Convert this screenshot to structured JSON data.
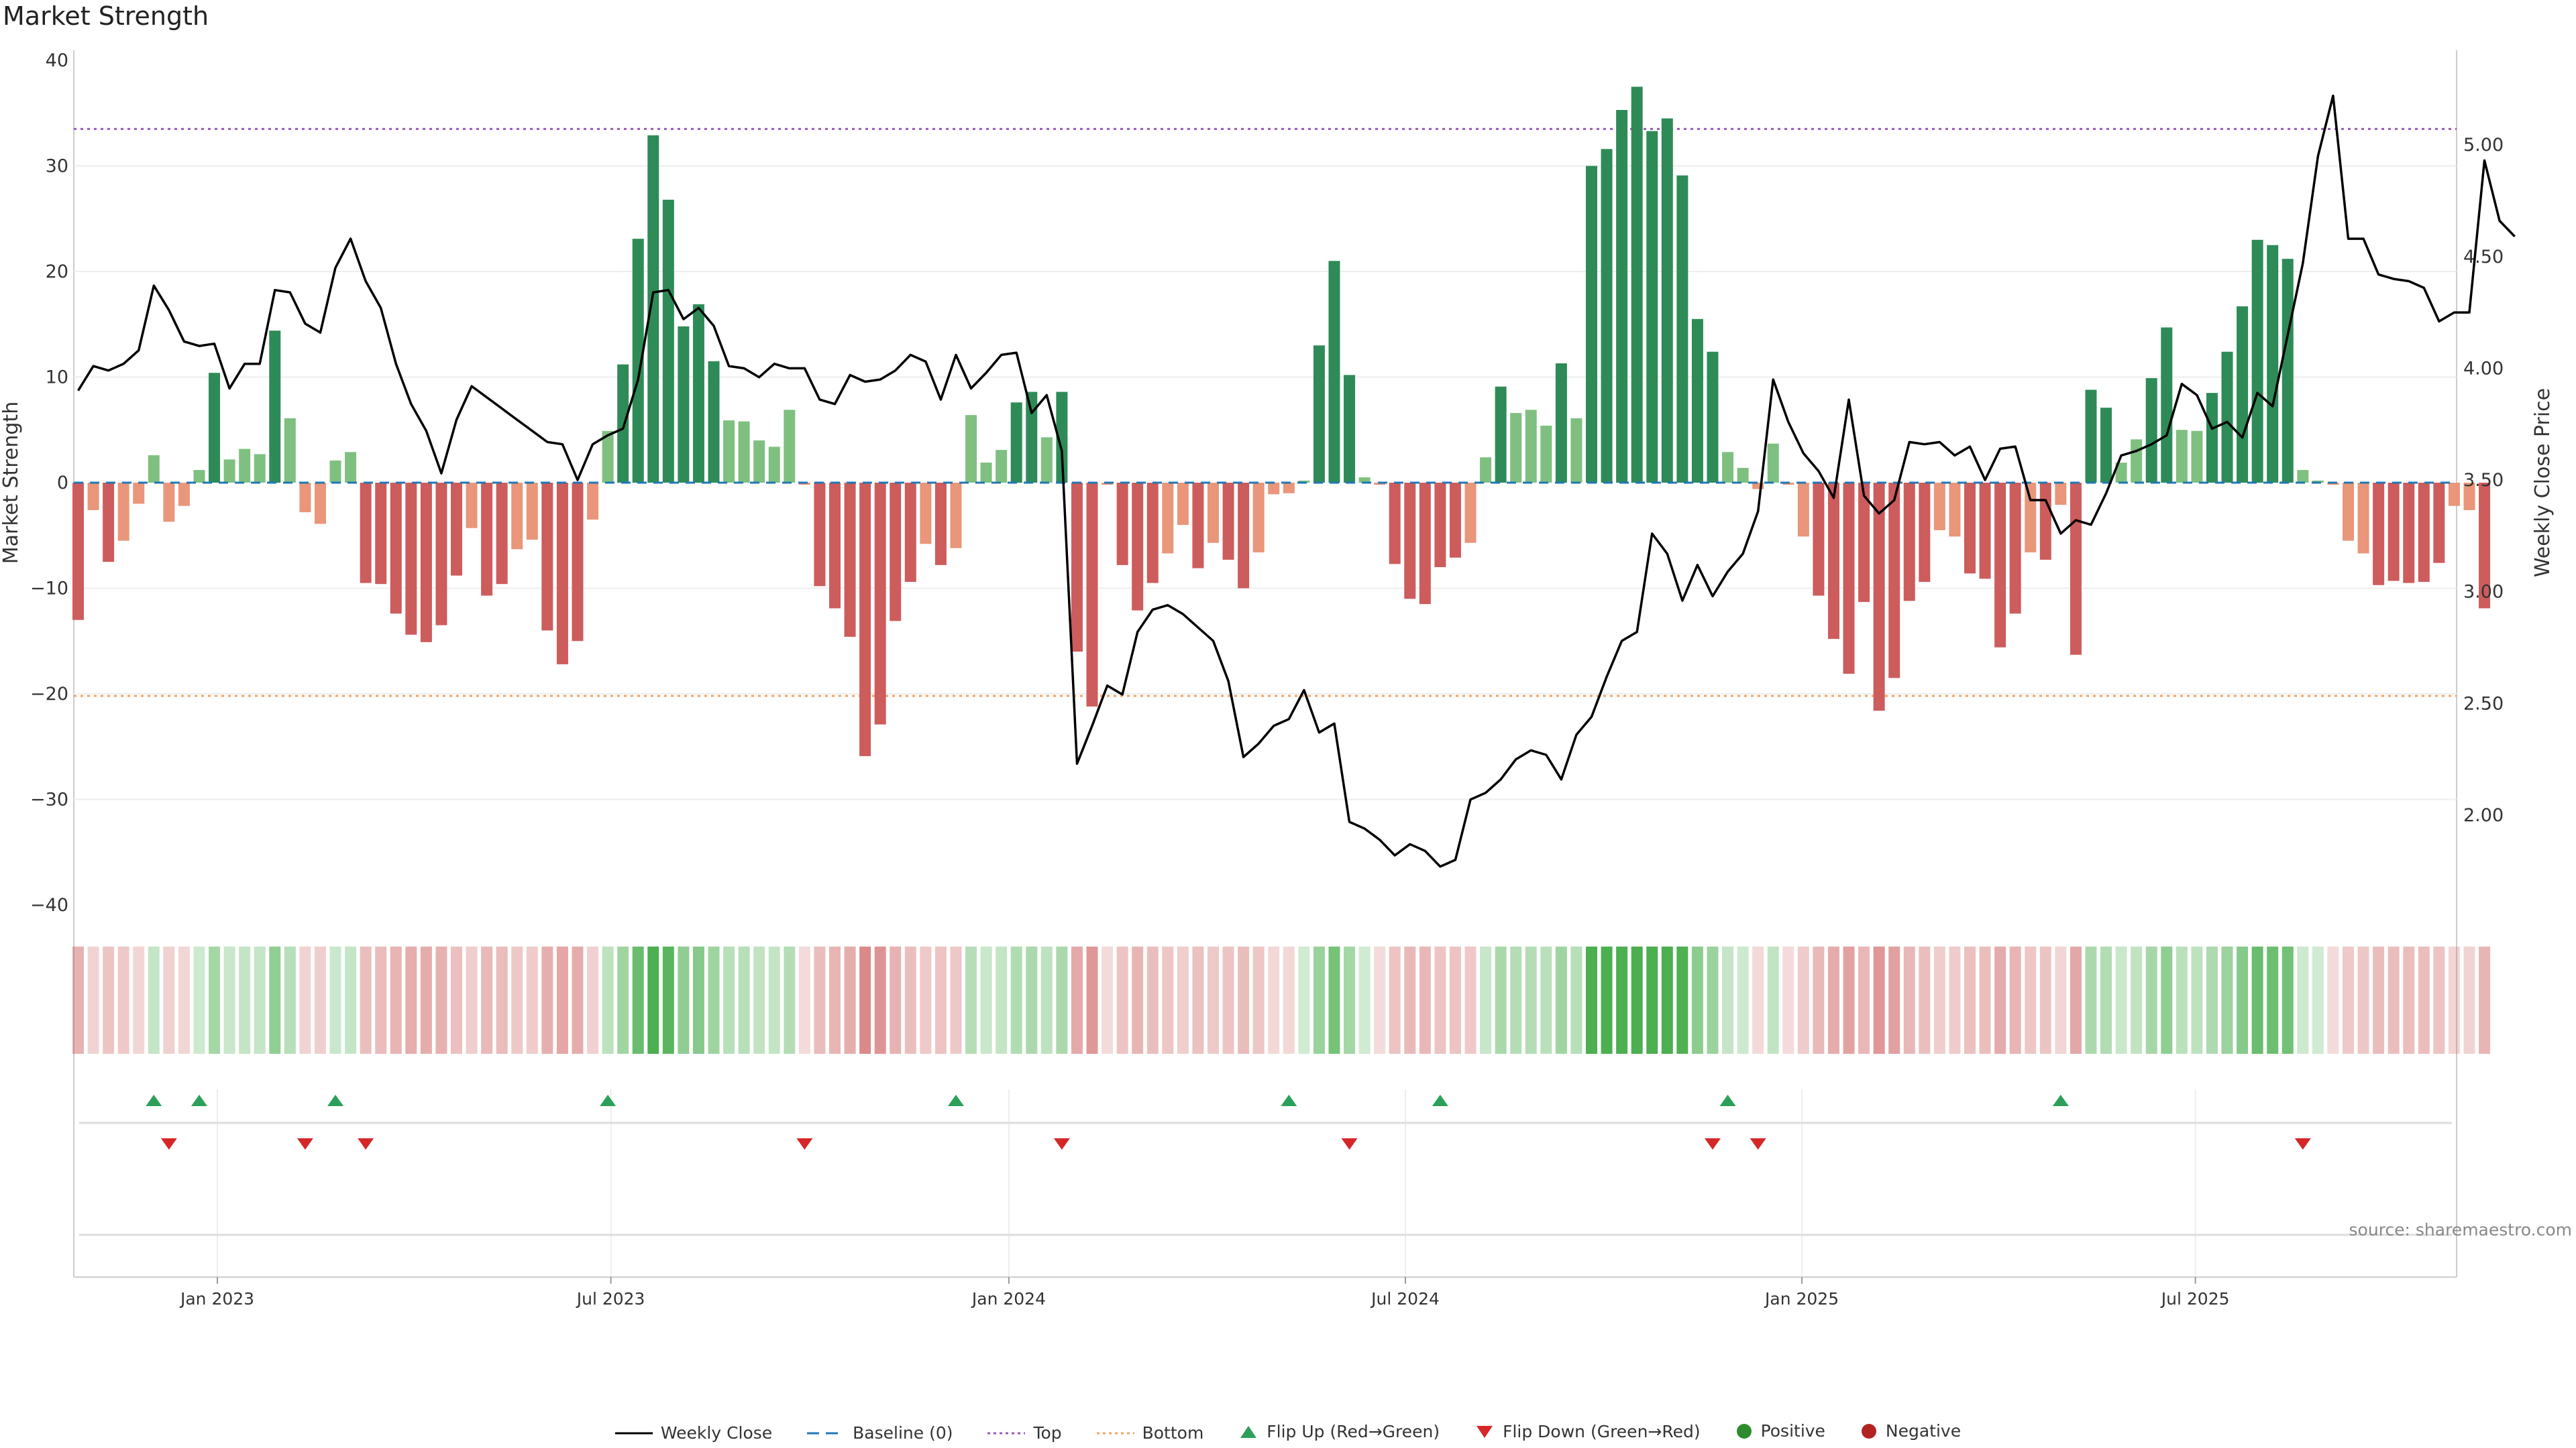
{
  "title": "Market Strength",
  "source": "source: sharemaestro.com",
  "colors": {
    "pos_strong": "#2e8b57",
    "pos_light": "#7fc080",
    "neg_strong": "#cd5c5c",
    "neg_light": "#e9967a",
    "close": "#000000",
    "top_line": "#9b59b6",
    "bottom_line": "#f4a460",
    "baseline": "#1f77b4",
    "flip_up": "#2ca05a",
    "flip_down": "#d62728"
  },
  "chart_data": {
    "type": "bar+line",
    "title": "Market Strength",
    "ylabel": "Market Strength",
    "y2label": "Weekly Close Price",
    "ylim": [
      -40,
      40
    ],
    "y2lim": [
      1.5,
      5.4
    ],
    "yticks": [
      40,
      30,
      20,
      10,
      0,
      -10,
      -20,
      -30,
      -40
    ],
    "yticklabels": [
      "40",
      "30",
      "20",
      "10",
      "0",
      "−10",
      "−20",
      "−30",
      "−40"
    ],
    "y2ticks": [
      2.0,
      2.5,
      3.0,
      3.5,
      4.0,
      4.5,
      5.0
    ],
    "y2ticklabels": [
      "2.00",
      "2.50",
      "3.00",
      "3.50",
      "4.00",
      "4.50",
      "5.00"
    ],
    "top_level": 33.5,
    "bottom_level": -20.2,
    "xticks": [
      {
        "label": "Jan 2023",
        "index": 9.2
      },
      {
        "label": "Jul 2023",
        "index": 35.2
      },
      {
        "label": "Jan 2024",
        "index": 61.5
      },
      {
        "label": "Jul 2024",
        "index": 87.7
      },
      {
        "label": "Jan 2025",
        "index": 113.9
      },
      {
        "label": "Jul 2025",
        "index": 139.9
      }
    ],
    "strength": [
      -13,
      -2.6,
      -7.5,
      -5.5,
      -2,
      2.6,
      -3.7,
      -2.2,
      1.2,
      10.4,
      2.2,
      3.2,
      2.7,
      14.4,
      6.1,
      -2.8,
      -3.9,
      2.1,
      2.9,
      -9.5,
      -9.6,
      -12.4,
      -14.4,
      -15.1,
      -13.5,
      -8.8,
      -4.3,
      -10.7,
      -9.6,
      -6.3,
      -5.4,
      -14,
      -17.2,
      -15,
      -3.5,
      4.9,
      11.2,
      23.1,
      32.9,
      26.8,
      14.8,
      16.9,
      11.5,
      5.9,
      5.8,
      4,
      3.4,
      6.9,
      -0.2,
      -9.8,
      -11.9,
      -14.6,
      -25.9,
      -22.9,
      -13.1,
      -9.4,
      -5.8,
      -7.8,
      -6.2,
      6.4,
      1.9,
      3.1,
      7.6,
      8.6,
      4.3,
      8.6,
      -16,
      -21.2,
      -0.2,
      -7.8,
      -12.1,
      -9.5,
      -6.7,
      -4,
      -8.1,
      -5.7,
      -7.3,
      -10,
      -6.6,
      -1.1,
      -1,
      0.2,
      13,
      21,
      10.2,
      0.5,
      -0.2,
      -7.7,
      -11,
      -11.5,
      -8,
      -7.1,
      -5.7,
      2.4,
      9.1,
      6.6,
      6.9,
      5.4,
      11.3,
      6.1,
      30,
      31.6,
      35.3,
      37.5,
      33.3,
      34.5,
      29.1,
      15.5,
      12.4,
      2.9,
      1.4,
      -0.6,
      3.7,
      -0.2,
      -5.1,
      -10.7,
      -14.8,
      -18.1,
      -11.3,
      -21.6,
      -18.5,
      -11.2,
      -9.4,
      -4.5,
      -5.1,
      -8.6,
      -9.1,
      -15.6,
      -12.4,
      -6.6,
      -7.3,
      -2.1,
      -16.3,
      8.8,
      7.1,
      1.9,
      4.1,
      9.9,
      14.7,
      5,
      4.9,
      8.5,
      12.4,
      16.7,
      23,
      22.5,
      21.2,
      1.2,
      0.2,
      -0.2,
      -5.5,
      -6.7,
      -9.7,
      -9.3,
      -9.5,
      -9.4,
      -7.6,
      -2.2,
      -2.6,
      -11.9
    ],
    "close": [
      3.9,
      4.01,
      3.99,
      4.02,
      4.08,
      4.37,
      4.26,
      4.12,
      4.1,
      4.11,
      3.91,
      4.02,
      4.02,
      4.35,
      4.34,
      4.2,
      4.16,
      4.45,
      4.58,
      4.39,
      4.27,
      4.02,
      3.84,
      3.72,
      3.53,
      3.77,
      3.92,
      3.87,
      3.82,
      3.77,
      3.72,
      3.67,
      3.66,
      3.5,
      3.66,
      3.7,
      3.73,
      3.95,
      4.34,
      4.35,
      4.22,
      4.27,
      4.19,
      4.01,
      4,
      3.96,
      4.02,
      4,
      4,
      3.86,
      3.84,
      3.97,
      3.94,
      3.95,
      3.99,
      4.06,
      4.03,
      3.86,
      4.06,
      3.91,
      3.98,
      4.06,
      4.07,
      3.8,
      3.88,
      3.63,
      2.23,
      2.4,
      2.58,
      2.54,
      2.82,
      2.92,
      2.94,
      2.9,
      2.84,
      2.78,
      2.6,
      2.26,
      2.32,
      2.4,
      2.43,
      2.56,
      2.37,
      2.41,
      1.97,
      1.94,
      1.89,
      1.82,
      1.87,
      1.84,
      1.77,
      1.8,
      2.07,
      2.1,
      2.16,
      2.25,
      2.29,
      2.27,
      2.16,
      2.36,
      2.44,
      2.62,
      2.78,
      2.82,
      3.26,
      3.17,
      2.96,
      3.12,
      2.98,
      3.09,
      3.17,
      3.36,
      3.95,
      3.76,
      3.62,
      3.54,
      3.42,
      3.86,
      3.43,
      3.35,
      3.41,
      3.67,
      3.66,
      3.67,
      3.61,
      3.65,
      3.5,
      3.64,
      3.65,
      3.41,
      3.41,
      3.26,
      3.32,
      3.3,
      3.44,
      3.61,
      3.63,
      3.66,
      3.7,
      3.93,
      3.88,
      3.73,
      3.76,
      3.69,
      3.89,
      3.83,
      4.15,
      4.47,
      4.95,
      5.22,
      4.58,
      4.58,
      4.42,
      4.4,
      4.39,
      4.36,
      4.21,
      4.25,
      4.25,
      4.93,
      4.66,
      4.59
    ],
    "strength_grid_levels": [
      30,
      20,
      10,
      -10,
      -20,
      -30
    ],
    "flip_up": [
      5,
      8,
      17,
      35,
      58,
      80,
      90,
      109,
      131
    ],
    "flip_down": [
      6,
      15,
      19,
      48,
      65,
      84,
      108,
      111,
      147
    ],
    "legend": [
      "Weekly Close",
      "Baseline (0)",
      "Top",
      "Bottom",
      "Flip Up (Red→Green)",
      "Flip Down (Green→Red)",
      "Positive",
      "Negative"
    ]
  }
}
